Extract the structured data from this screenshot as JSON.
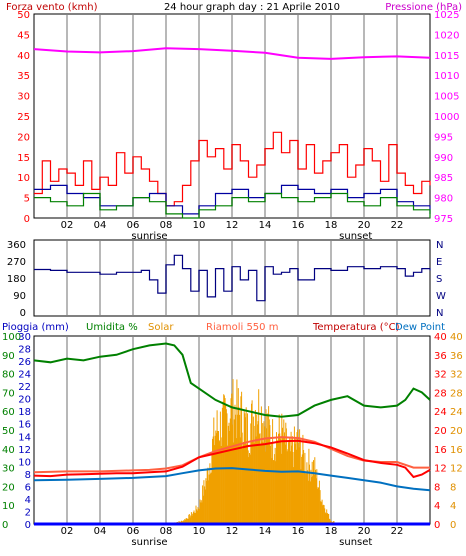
{
  "header": {
    "wind_label": "Forza vento (kmh)",
    "title": "24 hour graph day : 21 Aprile 2010",
    "pressure_label": "Pressione (hPa)"
  },
  "sun": {
    "sunrise": "sunrise",
    "sunset": "sunset"
  },
  "colors": {
    "frame": "#000000",
    "grid": "#b8b8b8",
    "bg": "#ffffff",
    "wind_red": "#ff0000",
    "wind_blue": "#0000a0",
    "wind_green": "#008000",
    "pressure": "#ff00ff",
    "direction": "#000080",
    "humidity": "#008000",
    "solar": "#f0a000",
    "temperature": "#ff0000",
    "dewpoint": "#0070c0",
    "riamoli": "#ff6040",
    "rain": "#0000ff",
    "label_rain": "#0000c0",
    "label_hum": "#008000",
    "label_solar": "#e09000",
    "label_riamoli": "#ff6040",
    "label_temp": "#c00000",
    "label_dew": "#0070c0",
    "axis_solar": "#e09000",
    "axis_temp": "#ff0000"
  },
  "chart_data": [
    {
      "type": "line",
      "x_ticks": [
        "02",
        "04",
        "06",
        "08",
        "10",
        "12",
        "14",
        "16",
        "18",
        "20",
        "22"
      ],
      "ylim_left": [
        0,
        50
      ],
      "yticks_left": [
        0,
        5,
        10,
        15,
        20,
        25,
        30,
        35,
        40,
        45,
        50
      ],
      "ylim_right": [
        975,
        1025
      ],
      "yticks_right": [
        975,
        980,
        985,
        990,
        995,
        1000,
        1005,
        1010,
        1015,
        1020,
        1025
      ],
      "ylabel_left": "Forza vento (kmh)",
      "ylabel_right": "Pressione (hPa)",
      "grid": true,
      "series": [
        {
          "axis": "right",
          "color_key": "pressure",
          "x": [
            0,
            2,
            4,
            6,
            8,
            10,
            12,
            14,
            16,
            18,
            20,
            22,
            24
          ],
          "y": [
            1016.4,
            1015.8,
            1015.6,
            1015.9,
            1016.6,
            1016.4,
            1016.0,
            1015.5,
            1014.3,
            1014.0,
            1014.4,
            1014.6,
            1014.3
          ]
        },
        {
          "axis": "left",
          "color_key": "wind_red",
          "x": [
            0,
            0.5,
            1,
            1.5,
            2,
            2.5,
            3,
            3.5,
            4,
            4.5,
            5,
            5.5,
            6,
            6.5,
            7,
            7.5,
            8,
            8.5,
            9,
            9.5,
            10,
            10.5,
            11,
            11.5,
            12,
            12.5,
            13,
            13.5,
            14,
            14.5,
            15,
            15.5,
            16,
            16.5,
            17,
            17.5,
            18,
            18.5,
            19,
            19.5,
            20,
            20.5,
            21,
            21.5,
            22,
            22.5,
            23,
            23.5,
            24
          ],
          "y": [
            6,
            14,
            9,
            12,
            11,
            8,
            14,
            7,
            10,
            8,
            16,
            11,
            15,
            12,
            9,
            6,
            3,
            4,
            8,
            14,
            19,
            15,
            17,
            12,
            18,
            14,
            10,
            13,
            17,
            21,
            16,
            19,
            12,
            18,
            11,
            14,
            16,
            18,
            10,
            13,
            17,
            14,
            9,
            18,
            11,
            8,
            6,
            9,
            8
          ]
        },
        {
          "axis": "left",
          "color_key": "wind_blue",
          "x": [
            0,
            1,
            2,
            3,
            4,
            5,
            6,
            7,
            8,
            9,
            10,
            11,
            12,
            13,
            14,
            15,
            16,
            17,
            18,
            19,
            20,
            21,
            22,
            23,
            24
          ],
          "y": [
            7,
            8,
            6,
            5,
            3,
            3,
            5,
            6,
            3,
            1,
            3,
            6,
            7,
            5,
            6,
            8,
            7,
            6,
            7,
            5,
            6,
            7,
            4,
            3,
            1
          ]
        },
        {
          "axis": "left",
          "color_key": "wind_green",
          "x": [
            0,
            1,
            2,
            3,
            4,
            5,
            6,
            7,
            8,
            9,
            10,
            11,
            12,
            13,
            14,
            15,
            16,
            17,
            18,
            19,
            20,
            21,
            22,
            23,
            24
          ],
          "y": [
            5,
            4,
            3,
            6,
            2,
            3,
            5,
            4,
            1,
            0,
            2,
            3,
            5,
            4,
            6,
            5,
            4,
            5,
            6,
            4,
            3,
            5,
            3,
            2,
            0
          ]
        }
      ]
    },
    {
      "type": "line",
      "x_ticks": [
        "02",
        "04",
        "06",
        "08",
        "10",
        "12",
        "14",
        "16",
        "18",
        "20",
        "22"
      ],
      "ylim_left": [
        0,
        360
      ],
      "yticks_left": [
        0,
        90,
        180,
        270,
        360
      ],
      "ylim_right": [
        0,
        360
      ],
      "yticks_right": [
        "N",
        "W",
        "S",
        "E",
        "N"
      ],
      "grid": true,
      "series": [
        {
          "axis": "left",
          "color_key": "direction",
          "x": [
            0,
            1,
            2,
            3,
            4,
            5,
            6,
            6.5,
            7,
            7.5,
            8,
            8.5,
            9,
            9.5,
            10,
            10.5,
            11,
            11.5,
            12,
            12.5,
            13,
            13.5,
            14,
            14.5,
            15,
            15.5,
            16,
            17,
            18,
            19,
            20,
            21,
            22,
            22.5,
            23,
            23.5,
            24
          ],
          "y": [
            225,
            220,
            210,
            210,
            200,
            210,
            210,
            220,
            170,
            100,
            250,
            300,
            230,
            110,
            220,
            80,
            230,
            110,
            240,
            170,
            220,
            60,
            240,
            200,
            210,
            230,
            170,
            230,
            220,
            240,
            230,
            240,
            230,
            190,
            210,
            230,
            220
          ]
        }
      ]
    },
    {
      "type": "line",
      "x_ticks": [
        "02",
        "04",
        "06",
        "08",
        "10",
        "12",
        "14",
        "16",
        "18",
        "20",
        "22"
      ],
      "ylim_left": [
        0,
        100
      ],
      "yticks_left": [
        0,
        10,
        20,
        30,
        40,
        50,
        60,
        70,
        80,
        90,
        100
      ],
      "ylim_left_rain": [
        0,
        30
      ],
      "yticks_left_rain": [
        0,
        2,
        4,
        6,
        8,
        10,
        12,
        14,
        16,
        18,
        20,
        22,
        24,
        26,
        28,
        30
      ],
      "ylim_right": [
        0,
        40
      ],
      "yticks_right": [
        0,
        4,
        8,
        12,
        16,
        20,
        24,
        28,
        32,
        36,
        40
      ],
      "labels": {
        "rain": "Pioggia (mm)",
        "humidity": "Umidita %",
        "solar": "Solar",
        "riamoli": "Riamoli 550 m",
        "temperature": "Temperatura (°C)",
        "dewpoint": "Dew Point"
      },
      "grid": true,
      "series": [
        {
          "axis": "hum",
          "color_key": "humidity",
          "x": [
            0,
            1,
            2,
            3,
            4,
            5,
            6,
            7,
            8,
            8.5,
            9,
            9.5,
            10,
            11,
            12,
            13,
            14,
            15,
            16,
            17,
            18,
            19,
            20,
            21,
            22,
            22.5,
            23,
            23.5,
            24
          ],
          "y": [
            87,
            86,
            88,
            87,
            89,
            90,
            93,
            95,
            96,
            95,
            90,
            75,
            72,
            66,
            62,
            60,
            58,
            57,
            58,
            63,
            66,
            68,
            63,
            62,
            63,
            66,
            72,
            70,
            66
          ]
        },
        {
          "axis": "right",
          "color_key": "riamoli",
          "x": [
            0,
            2,
            4,
            6,
            7,
            8,
            9,
            10,
            11,
            12,
            13,
            14,
            15,
            16,
            17,
            18,
            19,
            20,
            21,
            22,
            23,
            24
          ],
          "y": [
            11,
            11.2,
            11.2,
            11.4,
            11.5,
            11.8,
            12.5,
            14.2,
            15.5,
            16.5,
            17.5,
            18.2,
            18.5,
            18.3,
            17.5,
            16,
            14.5,
            13.5,
            13.2,
            13.2,
            12,
            12
          ]
        },
        {
          "axis": "right",
          "color_key": "temperature",
          "x": [
            0,
            1,
            2,
            3,
            4,
            5,
            6,
            7,
            8,
            9,
            10,
            11,
            12,
            13,
            14,
            15,
            16,
            17,
            18,
            19,
            20,
            21,
            22,
            22.5,
            23,
            23.5,
            24
          ],
          "y": [
            10.3,
            10.2,
            10.5,
            10.6,
            10.7,
            10.8,
            10.8,
            11,
            11.2,
            12.2,
            14.2,
            15,
            15.8,
            16.6,
            17,
            17.6,
            17.7,
            17.2,
            16.3,
            15,
            13.6,
            13,
            12.6,
            12,
            10,
            10.5,
            11.5
          ]
        },
        {
          "axis": "right",
          "color_key": "dewpoint",
          "x": [
            0,
            2,
            4,
            6,
            8,
            9,
            10,
            11,
            12,
            13,
            14,
            15,
            16,
            17,
            18,
            19,
            20,
            21,
            22,
            23,
            24
          ],
          "y": [
            9.3,
            9.4,
            9.6,
            9.8,
            10.2,
            10.8,
            11.4,
            11.8,
            11.9,
            11.6,
            11.3,
            11.1,
            11.2,
            10.8,
            10.3,
            9.8,
            9.3,
            8.8,
            8,
            7.5,
            7.2
          ]
        },
        {
          "axis": "solar",
          "color_key": "solar",
          "x": [
            0,
            6,
            8,
            9,
            9.5,
            10,
            10.5,
            11,
            11.5,
            12,
            12.5,
            13,
            13.5,
            14,
            14.5,
            15,
            15.5,
            16,
            16.5,
            17,
            17.5,
            18,
            19,
            24
          ],
          "y": [
            0,
            0,
            0,
            20,
            60,
            120,
            330,
            640,
            700,
            790,
            760,
            620,
            820,
            700,
            580,
            620,
            480,
            560,
            420,
            380,
            150,
            20,
            0,
            0
          ]
        },
        {
          "axis": "rain",
          "color_key": "rain",
          "x": [
            0,
            24
          ],
          "y": [
            0,
            0
          ]
        }
      ]
    }
  ]
}
